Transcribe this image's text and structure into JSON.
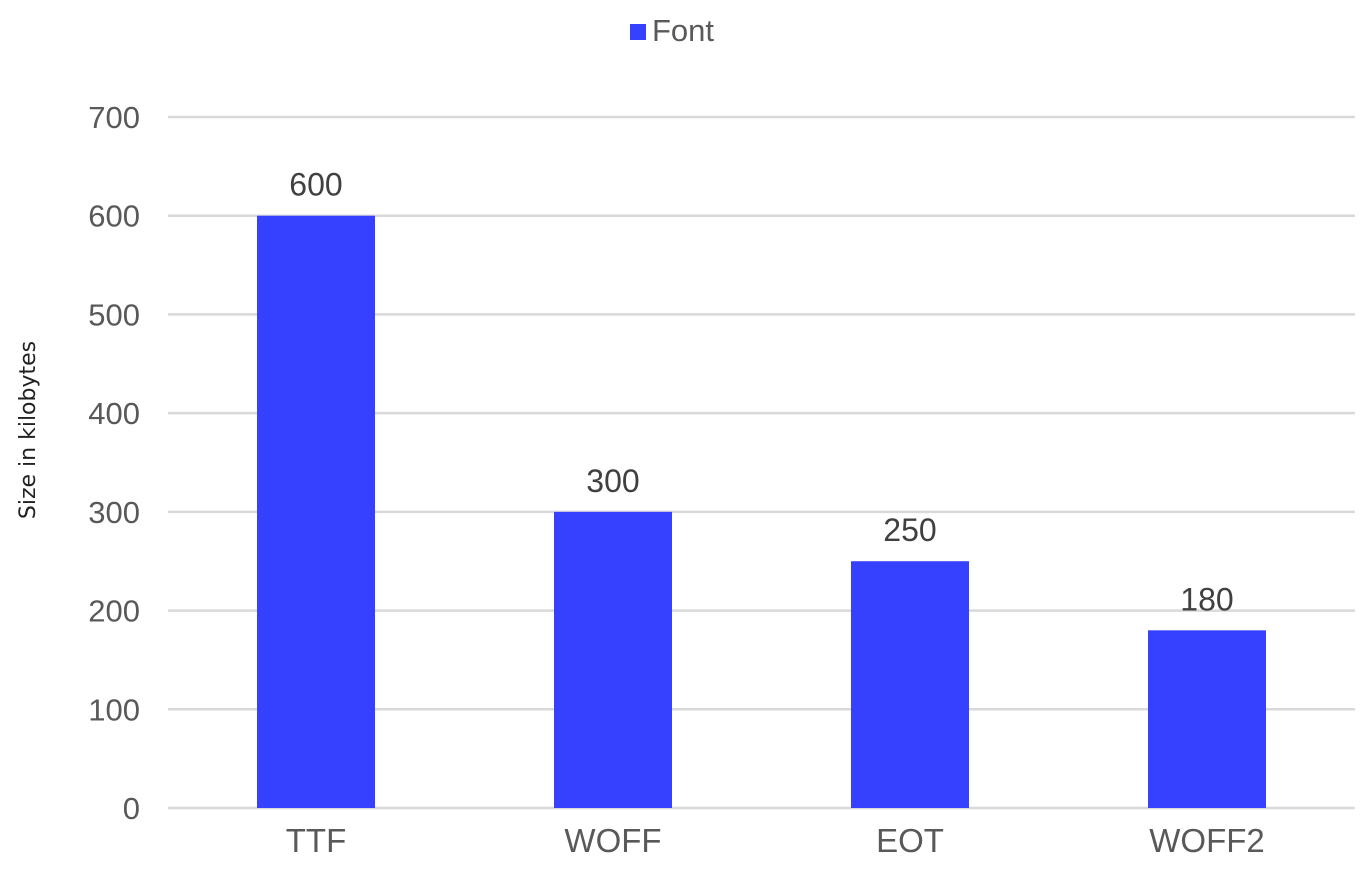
{
  "chart_data": {
    "type": "bar",
    "title": "",
    "xlabel": "",
    "ylabel": "Size in kilobytes",
    "categories": [
      "TTF",
      "WOFF",
      "EOT",
      "WOFF2"
    ],
    "series": [
      {
        "name": "Font",
        "values": [
          600,
          300,
          250,
          180
        ],
        "color": "#3641ff"
      }
    ],
    "ylim": [
      0,
      700
    ],
    "yticks": [
      0,
      100,
      200,
      300,
      400,
      500,
      600,
      700
    ],
    "grid": true,
    "legend_position": "top-center",
    "data_labels": true
  },
  "colors": {
    "bar": "#3641ff",
    "gridline": "#d9d9d9",
    "tick_text": "#595959",
    "data_label_text": "#404040"
  }
}
